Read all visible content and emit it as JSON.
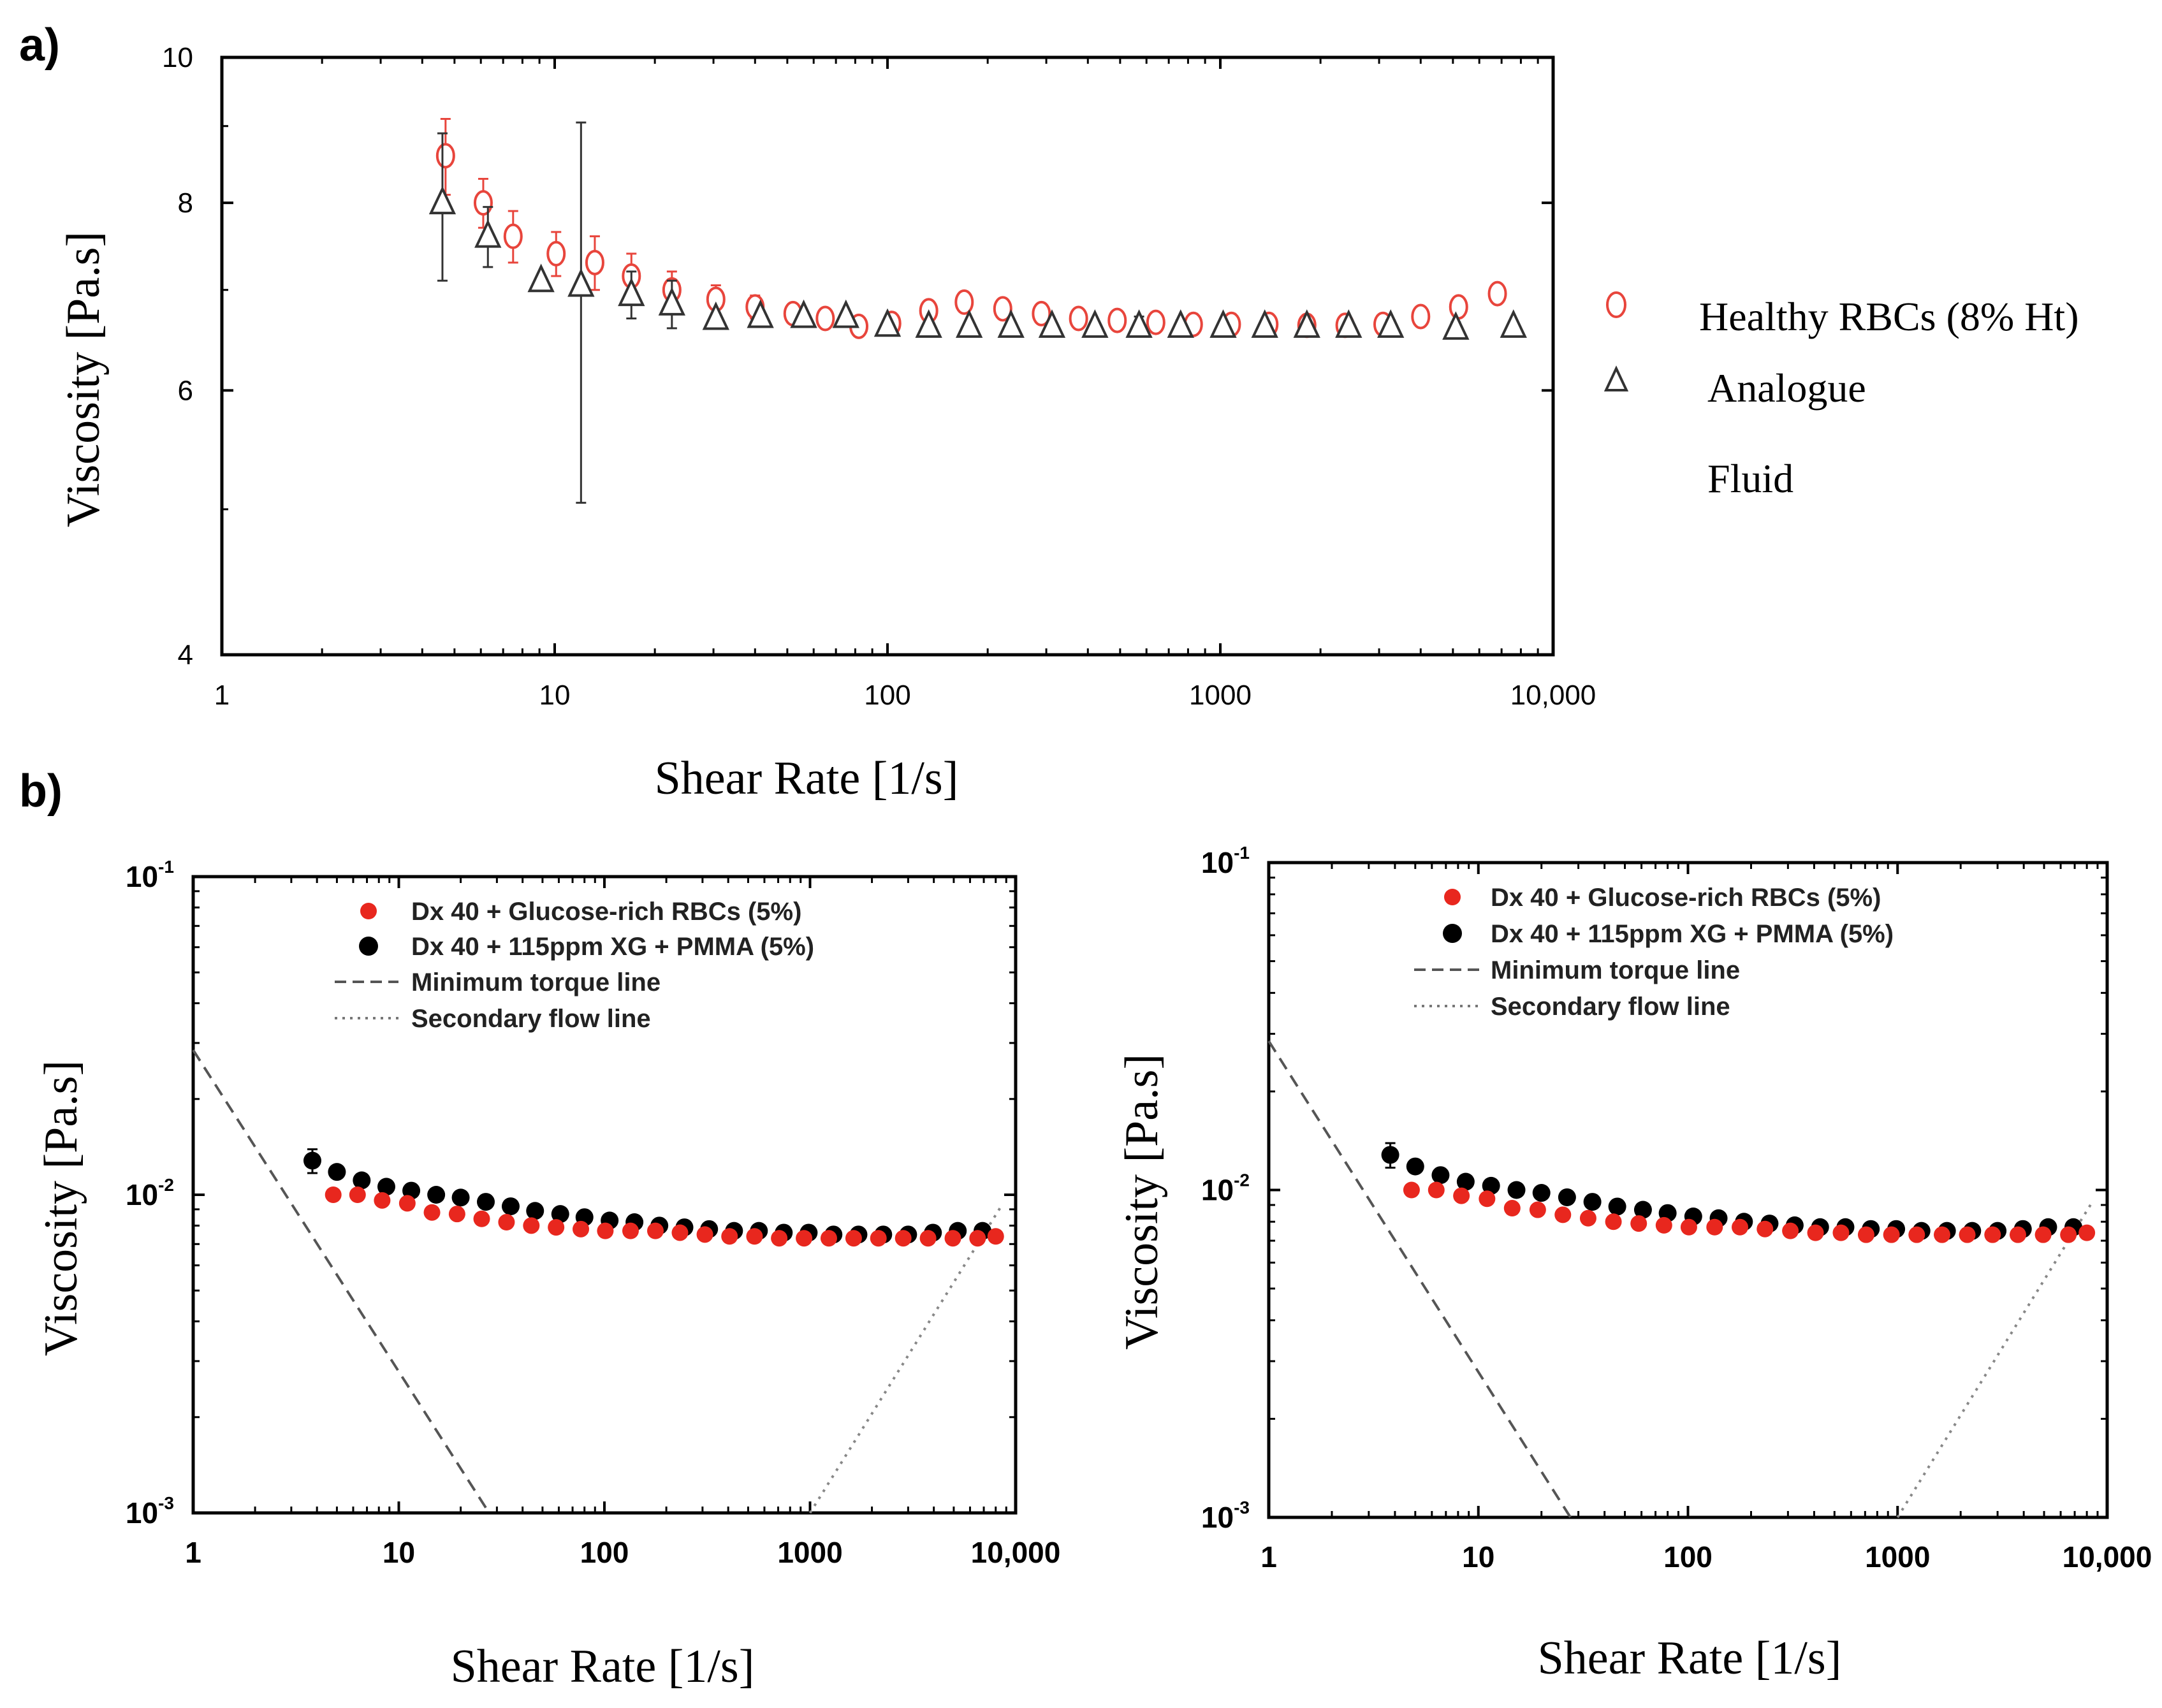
{
  "panel_labels": {
    "a": "a)",
    "b": "b)"
  },
  "chart_data": [
    {
      "id": "a",
      "type": "scatter",
      "xscale": "log",
      "yscale": "log",
      "xlim": [
        1,
        10000
      ],
      "ylim": [
        4,
        10
      ],
      "xlabel": "Shear Rate [1/s]",
      "ylabel": "Viscosity [Pa.s]",
      "x_ticks": [
        1,
        10,
        100,
        1000,
        10000
      ],
      "x_tick_labels": [
        "1",
        "10",
        "100",
        "1000",
        "10,000"
      ],
      "y_ticks": [
        4,
        6,
        8,
        10
      ],
      "y_tick_labels": [
        "4",
        "6",
        "8",
        "10"
      ],
      "legend": {
        "position": "right",
        "entries": [
          {
            "marker": "circle-open",
            "color": "#e8453c",
            "label": "Healthy RBCs (8% Ht)"
          },
          {
            "marker": "triangle-open",
            "color": "#333333",
            "label": "Analogue"
          },
          {
            "marker": "none",
            "color": "#333333",
            "label": "Fluid"
          }
        ]
      },
      "series": [
        {
          "name": "Healthy RBCs (8% Ht)",
          "marker": "circle-open",
          "color": "#e8453c",
          "x": [
            4.7,
            6.1,
            7.5,
            10.1,
            13.2,
            17.0,
            22.5,
            30.5,
            40.0,
            52.0,
            65.0,
            82.0,
            103.0,
            133.0,
            170.0,
            222.0,
            290.0,
            375.0,
            490.0,
            640.0,
            830.0,
            1080.0,
            1400.0,
            1820.0,
            2370.0,
            3080.0,
            4000.0,
            5200.0,
            6800.0
          ],
          "y": [
            8.6,
            8.0,
            7.6,
            7.4,
            7.3,
            7.15,
            7.0,
            6.9,
            6.82,
            6.75,
            6.7,
            6.62,
            6.65,
            6.78,
            6.87,
            6.8,
            6.75,
            6.7,
            6.68,
            6.66,
            6.64,
            6.64,
            6.64,
            6.63,
            6.63,
            6.64,
            6.72,
            6.82,
            6.96
          ],
          "err": [
            0.5,
            0.3,
            0.3,
            0.25,
            0.3,
            0.25,
            0.2,
            0.15,
            0.12,
            0.1,
            0.1,
            0.05,
            0.03,
            0.03,
            0.03,
            0.03,
            0.03,
            0.03,
            0.02,
            0.02,
            0.02,
            0.02,
            0.02,
            0.02,
            0.02,
            0.02,
            0.02,
            0.02,
            0.02
          ]
        },
        {
          "name": "Analogue Fluid",
          "marker": "triangle-open",
          "color": "#333333",
          "x": [
            4.6,
            6.3,
            9.1,
            12.0,
            17.0,
            22.5,
            30.5,
            41.5,
            56.0,
            75.0,
            100.0,
            133.0,
            176.0,
            235.0,
            312.0,
            420.0,
            570.0,
            760.0,
            1020.0,
            1360.0,
            1820.0,
            2430.0,
            3250.0,
            5100.0,
            7600.0
          ],
          "y": [
            8.0,
            7.6,
            7.1,
            7.05,
            6.95,
            6.85,
            6.7,
            6.72,
            6.72,
            6.72,
            6.63,
            6.62,
            6.62,
            6.62,
            6.62,
            6.62,
            6.62,
            6.62,
            6.62,
            6.62,
            6.62,
            6.62,
            6.62,
            6.6,
            6.62
          ],
          "err": [
            0.9,
            0.35,
            0.0,
            2.0,
            0.25,
            0.25,
            0.0,
            0.0,
            0.0,
            0.0,
            0.0,
            0.0,
            0.05,
            0.0,
            0.0,
            0.0,
            0.1,
            0.06,
            0.0,
            0.0,
            0.0,
            0.0,
            0.06,
            0.06,
            0.0
          ]
        }
      ]
    },
    {
      "id": "b-left",
      "type": "scatter",
      "xscale": "log",
      "yscale": "log",
      "xlim": [
        1,
        10000
      ],
      "ylim": [
        0.001,
        0.1
      ],
      "xlabel": "Shear Rate [1/s]",
      "ylabel": "Viscosity [Pa.s]",
      "x_ticks": [
        1,
        10,
        100,
        1000,
        10000
      ],
      "x_tick_labels": [
        "1",
        "10",
        "100",
        "1000",
        "10,000"
      ],
      "y_ticks": [
        0.001,
        0.01,
        0.1
      ],
      "y_tick_labels": [
        [
          "10",
          "-3"
        ],
        [
          "10",
          "-2"
        ],
        [
          "10",
          "-1"
        ]
      ],
      "legend": {
        "position": "top-left",
        "entries": [
          {
            "marker": "dot",
            "color": "#e8271e",
            "label": "Dx 40 + Glucose-rich RBCs (5%)"
          },
          {
            "marker": "dot",
            "color": "#000000",
            "label": "Dx 40 + 115ppm XG + PMMA (5%)"
          },
          {
            "marker": "dashed",
            "color": "#555555",
            "label": "Minimum torque line"
          },
          {
            "marker": "dotted",
            "color": "#777777",
            "label": "Secondary flow line"
          }
        ]
      },
      "lines": [
        {
          "name": "Minimum torque line",
          "style": "dashed",
          "x": [
            1,
            27.5
          ],
          "y": [
            0.0285,
            0.001
          ]
        },
        {
          "name": "Secondary flow line",
          "style": "dotted",
          "x": [
            1000,
            8500
          ],
          "y": [
            0.001,
            0.0092
          ]
        }
      ],
      "series": [
        {
          "name": "Dx 40 + 115ppm XG + PMMA (5%)",
          "marker": "dot",
          "color": "#000000",
          "x": [
            3.8,
            5.0,
            6.6,
            8.7,
            11.5,
            15.2,
            20.0,
            26.5,
            35.0,
            46.0,
            61.0,
            80.0,
            106.0,
            140.0,
            185.0,
            245.0,
            323.0,
            427.0,
            564.0,
            745.0,
            985.0,
            1300.0,
            1720.0,
            2270.0,
            3000.0,
            3960.0,
            5230.0,
            6900.0
          ],
          "y": [
            0.0128,
            0.0118,
            0.0111,
            0.0106,
            0.0103,
            0.01,
            0.0098,
            0.0095,
            0.0092,
            0.0089,
            0.0087,
            0.0085,
            0.0083,
            0.0082,
            0.008,
            0.0079,
            0.0078,
            0.0077,
            0.0077,
            0.0076,
            0.0076,
            0.0075,
            0.0075,
            0.0075,
            0.0075,
            0.0076,
            0.0077,
            0.0077
          ],
          "err": [
            0.0011,
            0.0005,
            0.0003,
            0.0002,
            0.0002,
            0.0002,
            0.0001,
            0.0001,
            0.0001,
            0.0001,
            0.0001,
            0.0001,
            0.0001,
            0.0001,
            0.0001,
            0.0001,
            0.0001,
            0.0001,
            0.0001,
            0.0001,
            0.0001,
            0.0001,
            0.0001,
            0.0001,
            0.0001,
            0.0001,
            0.0001,
            0.0001
          ]
        },
        {
          "name": "Dx 40 + Glucose-rich RBCs (5%)",
          "marker": "dot",
          "color": "#e8271e",
          "x": [
            4.8,
            6.3,
            8.3,
            11.0,
            14.5,
            19.2,
            25.3,
            33.4,
            44.1,
            58.2,
            76.8,
            101.0,
            134.0,
            177.0,
            233.0,
            308.0,
            406.0,
            537.0,
            708.0,
            935.0,
            1234.0,
            1630.0,
            2150.0,
            2840.0,
            3750.0,
            4950.0,
            6530.0,
            8000.0
          ],
          "y": [
            0.01,
            0.01,
            0.0096,
            0.0094,
            0.0088,
            0.0087,
            0.0084,
            0.0082,
            0.008,
            0.0079,
            0.0078,
            0.0077,
            0.0077,
            0.0077,
            0.0076,
            0.0075,
            0.0074,
            0.0074,
            0.0073,
            0.0073,
            0.0073,
            0.0073,
            0.0073,
            0.0073,
            0.0073,
            0.0073,
            0.0073,
            0.0074
          ],
          "err": [
            0.0002,
            0.0002,
            0.0001,
            0.0001,
            0.0001,
            0.0001,
            0.0001,
            0.0001,
            0.0001,
            0.0001,
            0.0001,
            0.0001,
            0.0001,
            0.0001,
            0.0001,
            0.0001,
            0.0001,
            0.0001,
            0.0001,
            0.0001,
            0.0001,
            0.0001,
            0.0001,
            0.0001,
            0.0001,
            0.0001,
            0.0001,
            0.0001
          ]
        }
      ]
    },
    {
      "id": "b-right",
      "type": "scatter",
      "xscale": "log",
      "yscale": "log",
      "xlim": [
        1,
        10000
      ],
      "ylim": [
        0.001,
        0.1
      ],
      "xlabel": "Shear Rate [1/s]",
      "ylabel": "Viscosity [Pa.s]",
      "x_ticks": [
        1,
        10,
        100,
        1000,
        10000
      ],
      "x_tick_labels": [
        "1",
        "10",
        "100",
        "1000",
        "10,000"
      ],
      "y_ticks": [
        0.001,
        0.01,
        0.1
      ],
      "y_tick_labels": [
        [
          "10",
          "-3"
        ],
        [
          "10",
          "-2"
        ],
        [
          "10",
          "-1"
        ]
      ],
      "legend": {
        "position": "top-left",
        "entries": [
          {
            "marker": "dot",
            "color": "#e8271e",
            "label": "Dx 40 + Glucose-rich RBCs (5%)"
          },
          {
            "marker": "dot",
            "color": "#000000",
            "label": "Dx 40 + 115ppm XG + PMMA (5%)"
          },
          {
            "marker": "dashed",
            "color": "#555555",
            "label": "Minimum torque line"
          },
          {
            "marker": "dotted",
            "color": "#777777",
            "label": "Secondary flow line"
          }
        ]
      },
      "lines": [
        {
          "name": "Minimum torque line",
          "style": "dashed",
          "x": [
            1,
            27.5
          ],
          "y": [
            0.0285,
            0.001
          ]
        },
        {
          "name": "Secondary flow line",
          "style": "dotted",
          "x": [
            1000,
            8500
          ],
          "y": [
            0.001,
            0.0092
          ]
        }
      ],
      "series": [
        {
          "name": "Dx 40 + 115ppm XG + PMMA (5%)",
          "marker": "dot",
          "color": "#000000",
          "x": [
            3.8,
            5.0,
            6.6,
            8.7,
            11.5,
            15.2,
            20.0,
            26.5,
            35.0,
            46.0,
            61.0,
            80.0,
            106.0,
            140.0,
            185.0,
            245.0,
            323.0,
            427.0,
            564.0,
            745.0,
            985.0,
            1300.0,
            1720.0,
            2270.0,
            3000.0,
            3960.0,
            5230.0,
            6900.0
          ],
          "y": [
            0.0128,
            0.0118,
            0.0111,
            0.0106,
            0.0103,
            0.01,
            0.0098,
            0.0095,
            0.0092,
            0.0089,
            0.0087,
            0.0085,
            0.0083,
            0.0082,
            0.008,
            0.0079,
            0.0078,
            0.0077,
            0.0077,
            0.0076,
            0.0076,
            0.0075,
            0.0075,
            0.0075,
            0.0075,
            0.0076,
            0.0077,
            0.0077
          ],
          "err": [
            0.0011,
            0.0005,
            0.0003,
            0.0002,
            0.0002,
            0.0002,
            0.0001,
            0.0001,
            0.0001,
            0.0001,
            0.0001,
            0.0001,
            0.0001,
            0.0001,
            0.0001,
            0.0001,
            0.0001,
            0.0001,
            0.0001,
            0.0001,
            0.0001,
            0.0001,
            0.0001,
            0.0001,
            0.0001,
            0.0001,
            0.0001,
            0.0001
          ]
        },
        {
          "name": "Dx 40 + Glucose-rich RBCs (5%)",
          "marker": "dot",
          "color": "#e8271e",
          "x": [
            4.8,
            6.3,
            8.3,
            11.0,
            14.5,
            19.2,
            25.3,
            33.4,
            44.1,
            58.2,
            76.8,
            101.0,
            134.0,
            177.0,
            233.0,
            308.0,
            406.0,
            537.0,
            708.0,
            935.0,
            1234.0,
            1630.0,
            2150.0,
            2840.0,
            3750.0,
            4950.0,
            6530.0,
            8000.0
          ],
          "y": [
            0.01,
            0.01,
            0.0096,
            0.0094,
            0.0088,
            0.0087,
            0.0084,
            0.0082,
            0.008,
            0.0079,
            0.0078,
            0.0077,
            0.0077,
            0.0077,
            0.0076,
            0.0075,
            0.0074,
            0.0074,
            0.0073,
            0.0073,
            0.0073,
            0.0073,
            0.0073,
            0.0073,
            0.0073,
            0.0073,
            0.0073,
            0.0074
          ],
          "err": [
            0.0002,
            0.0002,
            0.0001,
            0.0001,
            0.0001,
            0.0001,
            0.0001,
            0.0001,
            0.0001,
            0.0001,
            0.0001,
            0.0001,
            0.0001,
            0.0001,
            0.0001,
            0.0001,
            0.0001,
            0.0001,
            0.0001,
            0.0001,
            0.0001,
            0.0001,
            0.0001,
            0.0001,
            0.0001,
            0.0001,
            0.0001,
            0.0001
          ]
        }
      ]
    }
  ]
}
